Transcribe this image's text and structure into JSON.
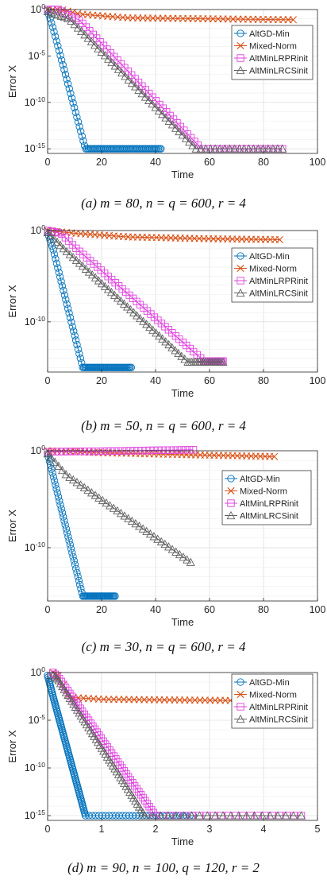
{
  "colors": {
    "altgd": "#0072BD",
    "mixed": "#D95319",
    "lrpr": "#E040E0",
    "lrcs": "#606060"
  },
  "chart_data": [
    {
      "type": "line",
      "caption": "(a) m = 80, n = q = 600, r = 4",
      "xlabel": "Time",
      "ylabel": "Error X",
      "xlim": [
        0,
        100
      ],
      "xticks": [
        "0",
        "20",
        "40",
        "60",
        "80",
        "100"
      ],
      "ylim_log10": [
        -15.5,
        0
      ],
      "yticks": [
        {
          "exp": 0,
          "label": "10^0"
        },
        {
          "exp": -5,
          "label": "10^-5"
        },
        {
          "exp": -10,
          "label": "10^-10"
        },
        {
          "exp": -15,
          "label": "10^-15"
        }
      ],
      "y_scale": "log",
      "grid": true,
      "legend": "top-right",
      "series": [
        {
          "name": "AltGD-Min",
          "marker": "circle",
          "color": "#0072BD",
          "start": [
            0,
            -0.1
          ],
          "knots": [
            [
              2,
              -2
            ],
            [
              14,
              -15
            ]
          ],
          "end": [
            42,
            -15
          ],
          "n": 90
        },
        {
          "name": "Mixed-Norm",
          "marker": "x",
          "color": "#D95319",
          "start": [
            0,
            0
          ],
          "knots": [
            [
              5,
              0
            ],
            [
              12,
              -0.5
            ],
            [
              30,
              -0.9
            ],
            [
              60,
              -1.0
            ]
          ],
          "end": [
            91,
            -1.1
          ],
          "n": 50
        },
        {
          "name": "AltMinLRPRinit",
          "marker": "square",
          "color": "#E040E0",
          "start": [
            0,
            0
          ],
          "knots": [
            [
              4,
              0
            ],
            [
              12,
              -1.2
            ]
          ],
          "end": [
            57,
            -15
          ],
          "tail": [
            87,
            -15
          ],
          "n": 45
        },
        {
          "name": "AltMinLRCSinit",
          "marker": "triangle",
          "color": "#606060",
          "start": [
            0,
            -0.2
          ],
          "knots": [
            [
              8,
              -1.0
            ]
          ],
          "end": [
            55,
            -15
          ],
          "tail": [
            87,
            -15
          ],
          "n": 45
        }
      ]
    },
    {
      "type": "line",
      "caption": "(b) m = 50, n = q = 600, r = 4",
      "xlabel": "Time",
      "ylabel": "Error X",
      "xlim": [
        0,
        100
      ],
      "xticks": [
        "0",
        "20",
        "40",
        "60",
        "80",
        "100"
      ],
      "ylim_log10": [
        -15.5,
        0
      ],
      "yticks": [
        {
          "exp": 0,
          "label": "10^0"
        },
        {
          "exp": -10,
          "label": "10^-10"
        }
      ],
      "y_scale": "log",
      "grid": true,
      "legend": "top-right",
      "series": [
        {
          "name": "AltGD-Min",
          "marker": "circle",
          "color": "#0072BD",
          "start": [
            0,
            -0.2
          ],
          "knots": [
            [
              2,
              -2
            ],
            [
              13,
              -15
            ]
          ],
          "end": [
            31,
            -15
          ],
          "n": 75
        },
        {
          "name": "Mixed-Norm",
          "marker": "x",
          "color": "#D95319",
          "start": [
            0,
            0
          ],
          "knots": [
            [
              10,
              -0.3
            ],
            [
              30,
              -0.7
            ],
            [
              60,
              -0.9
            ]
          ],
          "end": [
            86,
            -1.0
          ],
          "n": 50
        },
        {
          "name": "AltMinLRPRinit",
          "marker": "square",
          "color": "#E040E0",
          "start": [
            0,
            0
          ],
          "knots": [
            [
              5,
              -0.3
            ],
            [
              10,
              -1.8
            ]
          ],
          "end": [
            58,
            -14.3
          ],
          "tail": [
            65,
            -14.3
          ],
          "n": 45
        },
        {
          "name": "AltMinLRCSinit",
          "marker": "triangle",
          "color": "#606060",
          "start": [
            0,
            -0.2
          ],
          "knots": [
            [
              6,
              -2.0
            ]
          ],
          "end": [
            52,
            -14.4
          ],
          "tail": [
            65,
            -14.4
          ],
          "n": 45
        }
      ]
    },
    {
      "type": "line",
      "caption": "(c) m = 30, n = q = 600, r = 4",
      "xlabel": "Time",
      "ylabel": "Error X",
      "xlim": [
        0,
        100
      ],
      "xticks": [
        "0",
        "20",
        "40",
        "60",
        "80",
        "100"
      ],
      "ylim_log10": [
        -15.5,
        0
      ],
      "yticks": [
        {
          "exp": 0,
          "label": "10^0"
        },
        {
          "exp": -10,
          "label": "10^-10"
        }
      ],
      "y_scale": "log",
      "grid": true,
      "legend": "top-right",
      "series": [
        {
          "name": "AltGD-Min",
          "marker": "circle",
          "color": "#0072BD",
          "start": [
            0,
            -0.3
          ],
          "knots": [
            [
              2,
              -2.5
            ],
            [
              13,
              -15
            ]
          ],
          "end": [
            25,
            -15
          ],
          "n": 70
        },
        {
          "name": "Mixed-Norm",
          "marker": "x",
          "color": "#D95319",
          "start": [
            0,
            0
          ],
          "knots": [
            [
              20,
              -0.2
            ],
            [
              50,
              -0.4
            ]
          ],
          "end": [
            84,
            -0.6
          ],
          "n": 50
        },
        {
          "name": "AltMinLRPRinit",
          "marker": "square",
          "color": "#E040E0",
          "start": [
            0,
            -0.1
          ],
          "knots": [
            [
              20,
              -0.05
            ],
            [
              40,
              0.05
            ]
          ],
          "end": [
            54,
            0.1
          ],
          "n": 38
        },
        {
          "name": "AltMinLRCSinit",
          "marker": "triangle",
          "color": "#606060",
          "start": [
            0,
            -0.3
          ],
          "knots": [
            [
              7,
              -2.5
            ]
          ],
          "end": [
            53,
            -11.5
          ],
          "n": 40
        }
      ]
    },
    {
      "type": "line",
      "caption": "(d) m = 90, n = 100, q = 120, r = 2",
      "xlabel": "Time",
      "ylabel": "Error X",
      "xlim": [
        0,
        5
      ],
      "xticks": [
        "0",
        "1",
        "2",
        "3",
        "4",
        "5"
      ],
      "ylim_log10": [
        -15.5,
        0
      ],
      "yticks": [
        {
          "exp": 0,
          "label": "10^0"
        },
        {
          "exp": -5,
          "label": "10^-5"
        },
        {
          "exp": -10,
          "label": "10^-10"
        },
        {
          "exp": -15,
          "label": "10^-15"
        }
      ],
      "y_scale": "log",
      "grid": true,
      "legend": "top-right",
      "series": [
        {
          "name": "AltGD-Min",
          "marker": "circle",
          "color": "#0072BD",
          "start": [
            0,
            -0.3
          ],
          "knots": [
            [
              0.1,
              -2.5
            ]
          ],
          "end": [
            0.7,
            -15
          ],
          "tail": [
            2.7,
            -15
          ],
          "n": 80
        },
        {
          "name": "Mixed-Norm",
          "marker": "x",
          "color": "#D95319",
          "start": [
            0.1,
            0
          ],
          "knots": [
            [
              0.2,
              -0.3
            ],
            [
              0.4,
              -2.6
            ],
            [
              1.0,
              -2.8
            ]
          ],
          "end": [
            4.7,
            -3.0
          ],
          "n": 50
        },
        {
          "name": "AltMinLRPRinit",
          "marker": "square",
          "color": "#E040E0",
          "start": [
            0.1,
            0
          ],
          "knots": [
            [
              0.2,
              -0.5
            ]
          ],
          "end": [
            2.0,
            -15
          ],
          "tail": [
            4.7,
            -15
          ],
          "n": 50
        },
        {
          "name": "AltMinLRCSinit",
          "marker": "triangle",
          "color": "#606060",
          "start": [
            0.1,
            -0.3
          ],
          "knots": [
            [
              0.2,
              -0.8
            ]
          ],
          "end": [
            1.8,
            -15
          ],
          "tail": [
            4.7,
            -15
          ],
          "n": 50
        }
      ]
    }
  ]
}
